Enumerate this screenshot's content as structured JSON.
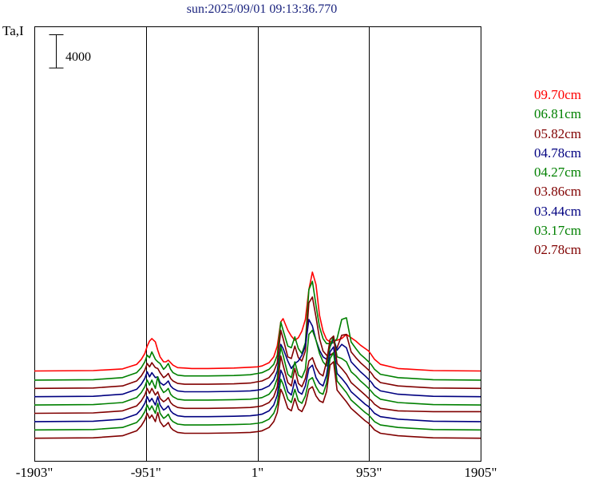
{
  "header": {
    "title": "sun:2025/09/01 09:13:36.770"
  },
  "chart_data": {
    "type": "line",
    "ylabel": "Ta,I",
    "scale_bar": {
      "label": "4000",
      "value": 4000
    },
    "x_ticks": [
      "-1903\"",
      "-951\"",
      "1\"",
      "953\"",
      "1905\""
    ],
    "x_tick_values": [
      -1903,
      -951,
      1,
      953,
      1905
    ],
    "xlim": [
      -1903,
      1905
    ],
    "vertical_lines_at": [
      -951,
      1,
      953
    ],
    "grid": false,
    "legend_position": "right",
    "profile_x": [
      -1903,
      -1400,
      -1150,
      -1030,
      -990,
      -960,
      -940,
      -920,
      -900,
      -870,
      -850,
      -830,
      -800,
      -780,
      -760,
      -740,
      -720,
      -680,
      -620,
      -560,
      -420,
      -200,
      -60,
      0,
      40,
      100,
      140,
      170,
      200,
      220,
      260,
      290,
      320,
      350,
      380,
      410,
      440,
      470,
      500,
      530,
      560,
      590,
      620,
      650,
      680,
      720,
      760,
      800,
      840,
      880,
      920,
      950,
      975,
      1000,
      1050,
      1200,
      1500,
      1905
    ],
    "series": [
      {
        "name": "09.70cm",
        "color": "#ff0000",
        "offset": 8800,
        "values": [
          0,
          50,
          250,
          800,
          1400,
          2100,
          3000,
          3600,
          3900,
          3500,
          2500,
          1700,
          1100,
          1100,
          1300,
          1000,
          700,
          400,
          350,
          300,
          300,
          350,
          450,
          500,
          600,
          1000,
          1700,
          3000,
          5900,
          6300,
          4900,
          4200,
          3700,
          4000,
          4800,
          6200,
          9800,
          11900,
          10400,
          6700,
          4800,
          3800,
          3500,
          3600,
          3700,
          3900,
          4400,
          4000,
          3600,
          3100,
          2700,
          2400,
          1900,
          1400,
          800,
          300,
          50,
          0
        ]
      },
      {
        "name": "06.81cm",
        "color": "#008000",
        "offset": 7700,
        "values": [
          0,
          50,
          300,
          900,
          1500,
          2200,
          3000,
          2700,
          3400,
          2500,
          2200,
          2000,
          1300,
          1600,
          2000,
          1300,
          900,
          600,
          500,
          500,
          500,
          550,
          650,
          800,
          900,
          1300,
          1900,
          3000,
          7000,
          6000,
          4100,
          3900,
          5200,
          3800,
          3200,
          4500,
          10900,
          11900,
          9000,
          6400,
          5000,
          4400,
          4400,
          4500,
          5000,
          7300,
          7500,
          4600,
          3800,
          3100,
          2600,
          2200,
          1800,
          1300,
          700,
          300,
          50,
          0
        ]
      },
      {
        "name": "05.82cm",
        "color": "#800000",
        "offset": 6700,
        "values": [
          0,
          50,
          300,
          900,
          1500,
          2200,
          3000,
          2600,
          3100,
          2500,
          2400,
          1900,
          1300,
          1500,
          1800,
          1200,
          900,
          600,
          500,
          500,
          500,
          550,
          650,
          800,
          900,
          1300,
          2000,
          3100,
          7000,
          6000,
          3800,
          3600,
          5100,
          3700,
          3300,
          4500,
          10300,
          11000,
          8600,
          6000,
          4500,
          4000,
          4000,
          4300,
          4900,
          6400,
          6500,
          4400,
          3700,
          3100,
          2600,
          2200,
          1800,
          1300,
          700,
          300,
          50,
          0
        ]
      },
      {
        "name": "04.78cm",
        "color": "#000080",
        "offset": 5700,
        "values": [
          0,
          50,
          300,
          900,
          1500,
          2200,
          3000,
          2400,
          2900,
          2300,
          2400,
          1700,
          1400,
          1600,
          1900,
          1300,
          1000,
          700,
          600,
          600,
          600,
          650,
          700,
          800,
          900,
          1300,
          2000,
          3100,
          6300,
          5800,
          4300,
          3400,
          4000,
          4300,
          5000,
          6100,
          9300,
          8500,
          6800,
          5600,
          4800,
          4500,
          6000,
          7000,
          5600,
          6300,
          5900,
          4200,
          3600,
          3000,
          2500,
          2100,
          1700,
          1200,
          700,
          300,
          50,
          0
        ]
      },
      {
        "name": "04.27cm",
        "color": "#008000",
        "offset": 4700,
        "values": [
          0,
          50,
          300,
          900,
          1500,
          2200,
          3000,
          2400,
          3000,
          2000,
          3400,
          2200,
          1500,
          1700,
          2000,
          1300,
          1000,
          700,
          600,
          600,
          600,
          650,
          700,
          800,
          900,
          1300,
          2000,
          3200,
          7000,
          6000,
          3700,
          3300,
          5200,
          3600,
          3300,
          4300,
          8500,
          9000,
          7800,
          6200,
          5200,
          4700,
          7100,
          8300,
          5800,
          5600,
          5200,
          4000,
          3500,
          2900,
          2400,
          2000,
          1600,
          1200,
          700,
          300,
          50,
          0
        ]
      },
      {
        "name": "03.86cm",
        "color": "#800000",
        "offset": 3700,
        "values": [
          0,
          50,
          300,
          900,
          1500,
          2200,
          3000,
          2400,
          3000,
          2200,
          2600,
          1800,
          1400,
          1600,
          1900,
          1300,
          1000,
          700,
          600,
          600,
          600,
          650,
          700,
          800,
          900,
          1300,
          2000,
          3200,
          6900,
          5800,
          3700,
          3300,
          5400,
          3600,
          3200,
          4200,
          6300,
          6700,
          5500,
          4800,
          4500,
          6200,
          8900,
          9300,
          6000,
          5400,
          4700,
          3700,
          3200,
          2700,
          2200,
          1800,
          1500,
          1100,
          600,
          300,
          200,
          200
        ]
      },
      {
        "name": "03.44cm",
        "color": "#000080",
        "offset": 2700,
        "values": [
          0,
          50,
          300,
          900,
          1500,
          2200,
          3000,
          2400,
          2800,
          2000,
          3000,
          2000,
          1400,
          1600,
          1900,
          1300,
          1000,
          700,
          600,
          600,
          600,
          650,
          700,
          800,
          900,
          1300,
          2000,
          3200,
          6200,
          5600,
          3600,
          3200,
          5000,
          3600,
          3300,
          4300,
          6400,
          6800,
          5300,
          4600,
          4300,
          5600,
          8400,
          9000,
          5800,
          5200,
          4500,
          3600,
          3100,
          2600,
          2100,
          1800,
          1400,
          1000,
          600,
          300,
          50,
          0
        ]
      },
      {
        "name": "03.17cm",
        "color": "#008000",
        "offset": 1700,
        "values": [
          0,
          50,
          300,
          900,
          1500,
          2200,
          3000,
          2400,
          2900,
          2000,
          3200,
          2000,
          1400,
          1600,
          1900,
          1300,
          1000,
          700,
          600,
          600,
          600,
          650,
          700,
          800,
          900,
          1300,
          2000,
          3100,
          6100,
          5500,
          3700,
          3300,
          4900,
          3500,
          3200,
          4100,
          6000,
          6300,
          5200,
          4500,
          4300,
          5600,
          8600,
          9300,
          5900,
          5200,
          4500,
          3600,
          3100,
          2600,
          2100,
          1800,
          1400,
          1000,
          600,
          300,
          50,
          0
        ]
      },
      {
        "name": "02.78cm",
        "color": "#800000",
        "offset": 700,
        "values": [
          0,
          50,
          300,
          900,
          1500,
          2200,
          3000,
          2400,
          2800,
          2000,
          3100,
          2000,
          1400,
          1600,
          1900,
          1300,
          1000,
          700,
          600,
          600,
          600,
          650,
          700,
          800,
          900,
          1300,
          2000,
          3100,
          5900,
          5300,
          3600,
          3300,
          4800,
          3500,
          3200,
          4100,
          5900,
          6200,
          5100,
          4500,
          4300,
          5600,
          8800,
          9200,
          5800,
          5100,
          4400,
          3600,
          3100,
          2600,
          2100,
          1800,
          1400,
          1000,
          600,
          300,
          50,
          0
        ]
      }
    ]
  }
}
